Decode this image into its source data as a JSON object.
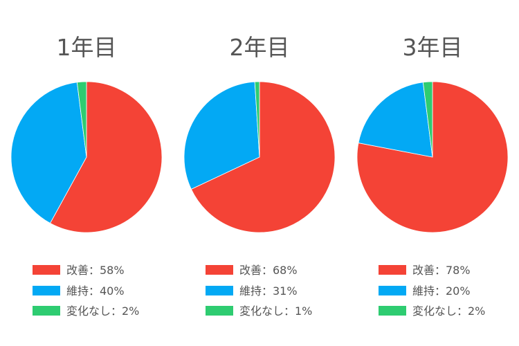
{
  "chart_data": [
    {
      "type": "pie",
      "title": "1年目",
      "slices": [
        {
          "label": "改善",
          "value": 58,
          "legend_text": "改善：58%",
          "color": "#f44336"
        },
        {
          "label": "維持",
          "value": 40,
          "legend_text": "維持：40%",
          "color": "#03a9f4"
        },
        {
          "label": "変化なし",
          "value": 2,
          "legend_text": "変化なし：2%",
          "color": "#2ecc71"
        }
      ]
    },
    {
      "type": "pie",
      "title": "2年目",
      "slices": [
        {
          "label": "改善",
          "value": 68,
          "legend_text": "改善：68%",
          "color": "#f44336"
        },
        {
          "label": "維持",
          "value": 31,
          "legend_text": "維持：31%",
          "color": "#03a9f4"
        },
        {
          "label": "変化なし",
          "value": 1,
          "legend_text": "変化なし：1%",
          "color": "#2ecc71"
        }
      ]
    },
    {
      "type": "pie",
      "title": "3年目",
      "slices": [
        {
          "label": "改善",
          "value": 78,
          "legend_text": "改善：78%",
          "color": "#f44336"
        },
        {
          "label": "維持",
          "value": 20,
          "legend_text": "維持：20%",
          "color": "#03a9f4"
        },
        {
          "label": "変化なし",
          "value": 2,
          "legend_text": "変化なし：2%",
          "color": "#2ecc71"
        }
      ]
    }
  ]
}
